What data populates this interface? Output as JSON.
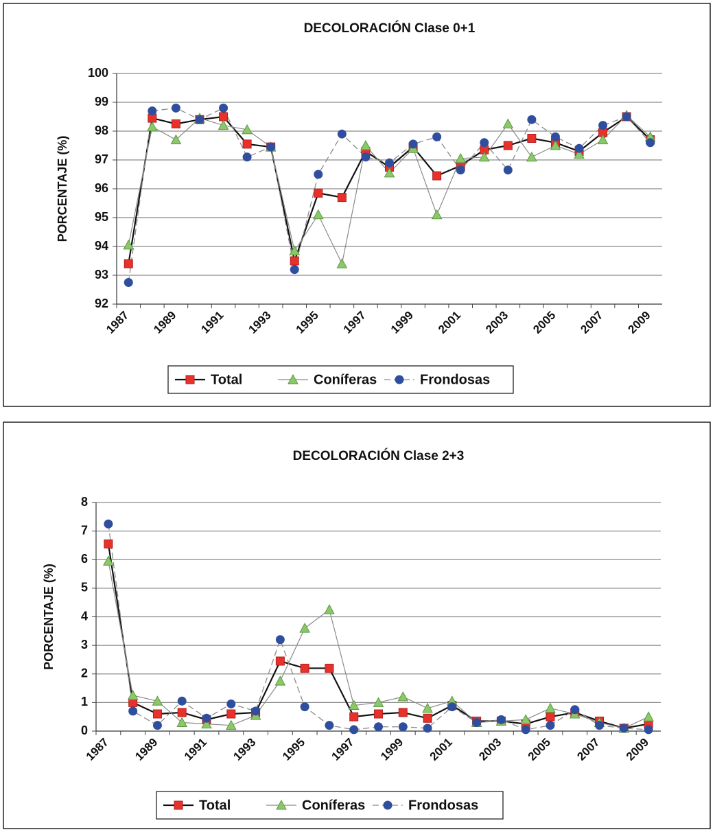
{
  "chart_data": [
    {
      "type": "line",
      "title": "DECOLORACIÓN Clase 0+1",
      "y_label": "PORCENTAJE (%)",
      "categories": [
        "1987",
        null,
        "1989",
        null,
        "1991",
        null,
        "1993",
        null,
        "1995",
        null,
        "1997",
        null,
        "1999",
        null,
        "2001",
        null,
        "2003",
        null,
        "2005",
        null,
        "2007",
        null,
        "2009"
      ],
      "ylim": [
        92,
        100
      ],
      "yticks": [
        92,
        93,
        94,
        95,
        96,
        97,
        98,
        99,
        100
      ],
      "grid": true,
      "series": [
        {
          "name": "Total",
          "color": "#e8312a",
          "line_color": "#111111",
          "line_style": "solid",
          "marker": "square",
          "values": [
            93.4,
            98.45,
            98.25,
            98.4,
            98.5,
            97.55,
            97.45,
            93.5,
            95.85,
            95.7,
            97.3,
            96.75,
            97.45,
            96.45,
            96.8,
            97.35,
            97.5,
            97.75,
            97.6,
            97.3,
            97.95,
            98.5,
            97.7
          ]
        },
        {
          "name": "Coníferas",
          "color": "#8cc86a",
          "line_color": "#8a8a8a",
          "line_style": "solid",
          "marker": "triangle",
          "values": [
            94.05,
            98.15,
            97.7,
            98.45,
            98.2,
            98.05,
            97.45,
            93.85,
            95.1,
            93.4,
            97.5,
            96.55,
            97.4,
            95.1,
            97.05,
            97.1,
            98.25,
            97.1,
            97.5,
            97.2,
            97.7,
            98.55,
            97.8
          ]
        },
        {
          "name": "Frondosas",
          "color": "#2f4f9e",
          "line_color": "#8a8a8a",
          "line_style": "dashed",
          "marker": "circle",
          "values": [
            92.75,
            98.7,
            98.8,
            98.4,
            98.8,
            97.1,
            97.45,
            93.2,
            96.5,
            97.9,
            97.1,
            96.9,
            97.55,
            97.8,
            96.65,
            97.6,
            96.65,
            98.4,
            97.8,
            97.4,
            98.2,
            98.5,
            97.6
          ]
        }
      ]
    },
    {
      "type": "line",
      "title": "DECOLORACIÓN Clase 2+3",
      "y_label": "PORCENTAJE (%)",
      "categories": [
        "1987",
        null,
        "1989",
        null,
        "1991",
        null,
        "1993",
        null,
        "1995",
        null,
        "1997",
        null,
        "1999",
        null,
        "2001",
        null,
        "2003",
        null,
        "2005",
        null,
        "2007",
        null,
        "2009"
      ],
      "ylim": [
        0,
        8
      ],
      "yticks": [
        0,
        1,
        2,
        3,
        4,
        5,
        6,
        7,
        8
      ],
      "grid": true,
      "series": [
        {
          "name": "Total",
          "color": "#e8312a",
          "line_color": "#111111",
          "line_style": "solid",
          "marker": "square",
          "values": [
            6.55,
            1.0,
            0.6,
            0.65,
            0.4,
            0.6,
            0.65,
            2.45,
            2.2,
            2.2,
            0.5,
            0.6,
            0.65,
            0.45,
            0.9,
            0.35,
            0.35,
            0.25,
            0.5,
            0.65,
            0.35,
            0.1,
            0.25
          ]
        },
        {
          "name": "Coníferas",
          "color": "#8cc86a",
          "line_color": "#8a8a8a",
          "line_style": "solid",
          "marker": "triangle",
          "values": [
            5.95,
            1.25,
            1.05,
            0.3,
            0.25,
            0.2,
            0.55,
            1.75,
            3.6,
            4.25,
            0.9,
            1.0,
            1.2,
            0.8,
            1.05,
            0.3,
            0.35,
            0.4,
            0.8,
            0.6,
            0.3,
            0.1,
            0.5
          ]
        },
        {
          "name": "Frondosas",
          "color": "#2f4f9e",
          "line_color": "#8a8a8a",
          "line_style": "dashed",
          "marker": "circle",
          "values": [
            7.25,
            0.7,
            0.2,
            1.05,
            0.45,
            0.95,
            0.7,
            3.2,
            0.85,
            0.2,
            0.05,
            0.15,
            0.15,
            0.1,
            0.85,
            0.3,
            0.4,
            0.05,
            0.2,
            0.75,
            0.2,
            0.1,
            0.05
          ]
        }
      ]
    }
  ]
}
